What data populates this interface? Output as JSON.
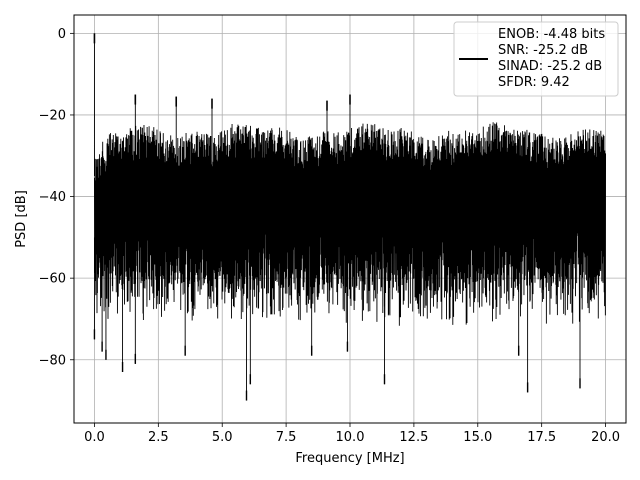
{
  "chart_data": {
    "type": "line",
    "title": "",
    "xlabel": "Frequency [MHz]",
    "ylabel": "PSD [dB]",
    "xlim": [
      -0.8,
      20.8
    ],
    "ylim": [
      -95.5,
      4.5
    ],
    "xticks": [
      0.0,
      2.5,
      5.0,
      7.5,
      10.0,
      12.5,
      15.0,
      17.5,
      20.0
    ],
    "xtick_labels": [
      "0.0",
      "2.5",
      "5.0",
      "7.5",
      "10.0",
      "12.5",
      "15.0",
      "17.5",
      "20.0"
    ],
    "yticks": [
      0,
      -20,
      -40,
      -60,
      -80
    ],
    "ytick_labels": [
      "0",
      "−20",
      "−40",
      "−60",
      "−80"
    ],
    "grid": true,
    "legend_position": "top-right",
    "legend_lines": [
      "ENOB: -4.48 bits",
      "SNR: -25.2 dB",
      "SINAD: -25.2 dB",
      "SFDR: 9.42"
    ],
    "line_color": "#000000",
    "noise": {
      "x_range": [
        0,
        20
      ],
      "upper_envelope_db": -22,
      "lower_envelope_db": -68,
      "floor_db": -45
    },
    "peaks": [
      {
        "x": 0.0,
        "y": 0
      },
      {
        "x": 1.6,
        "y": -15
      },
      {
        "x": 3.2,
        "y": -15.5
      },
      {
        "x": 4.6,
        "y": -16
      },
      {
        "x": 9.1,
        "y": -16.5
      },
      {
        "x": 10.0,
        "y": -15
      }
    ],
    "dips": [
      {
        "x": 0.0,
        "y": -75
      },
      {
        "x": 0.3,
        "y": -78
      },
      {
        "x": 0.45,
        "y": -80
      },
      {
        "x": 1.1,
        "y": -83
      },
      {
        "x": 1.6,
        "y": -81
      },
      {
        "x": 3.55,
        "y": -79
      },
      {
        "x": 5.95,
        "y": -90
      },
      {
        "x": 6.1,
        "y": -86
      },
      {
        "x": 8.5,
        "y": -79
      },
      {
        "x": 9.9,
        "y": -78
      },
      {
        "x": 11.35,
        "y": -86
      },
      {
        "x": 16.6,
        "y": -79
      },
      {
        "x": 16.95,
        "y": -88
      },
      {
        "x": 19.0,
        "y": -87
      }
    ]
  }
}
